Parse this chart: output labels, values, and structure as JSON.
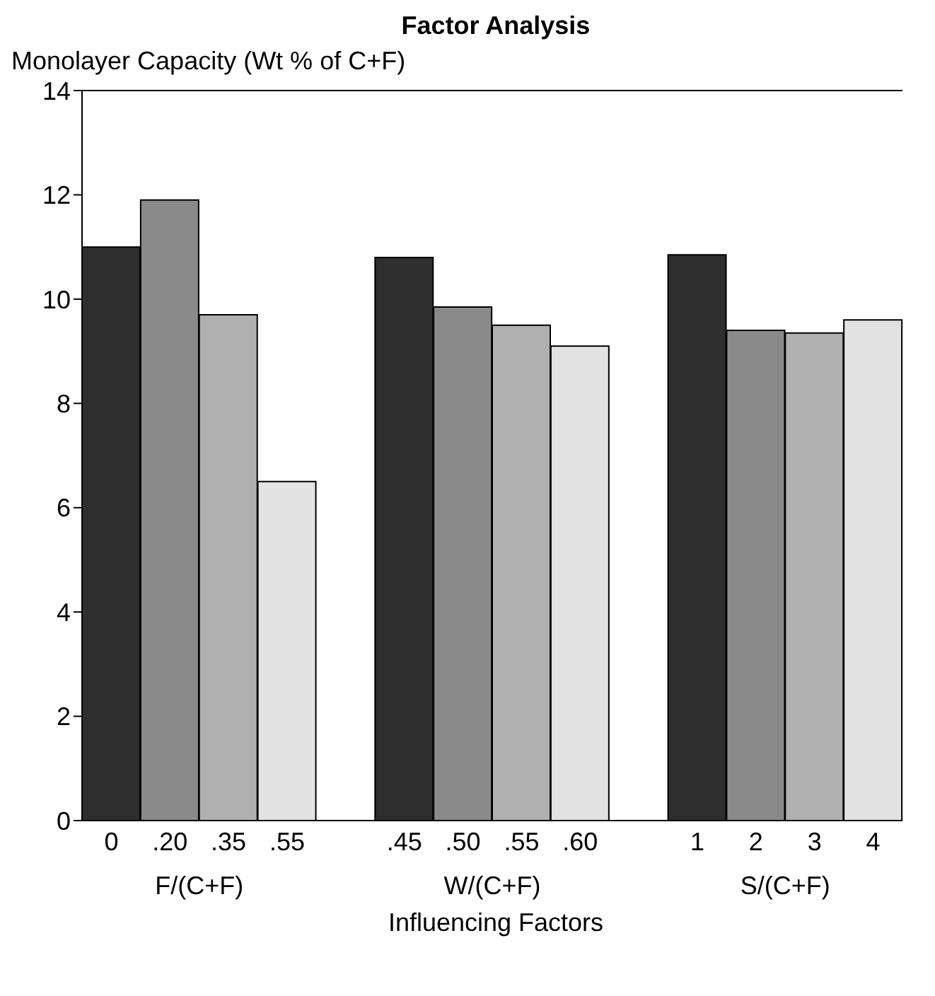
{
  "chart_data": {
    "type": "bar",
    "title": "Factor Analysis",
    "ylabel": "Monolayer Capacity (Wt % of C+F)",
    "xlabel": "Influencing Factors",
    "categories": [
      "0",
      ".20",
      ".35",
      ".55",
      null,
      ".45",
      ".50",
      ".55",
      ".60",
      null,
      "1",
      "2",
      "3",
      "4"
    ],
    "values": [
      11.0,
      11.9,
      9.7,
      6.5,
      null,
      10.8,
      9.85,
      9.5,
      9.1,
      null,
      10.85,
      9.4,
      9.35,
      9.6
    ],
    "colors": [
      "#2e2e2e",
      "#8a8a8a",
      "#b0b0b0",
      "#e2e2e2",
      null,
      "#2e2e2e",
      "#8a8a8a",
      "#b0b0b0",
      "#e2e2e2",
      null,
      "#2e2e2e",
      "#8a8a8a",
      "#b0b0b0",
      "#e2e2e2"
    ],
    "annotations": [
      "F/(C+F)",
      "W/(C+F)",
      "S/(C+F)"
    ],
    "ylim": [
      0,
      14
    ],
    "yticks": [
      0,
      2,
      4,
      6,
      8,
      10,
      12,
      14
    ],
    "grid": false,
    "legend": false
  }
}
